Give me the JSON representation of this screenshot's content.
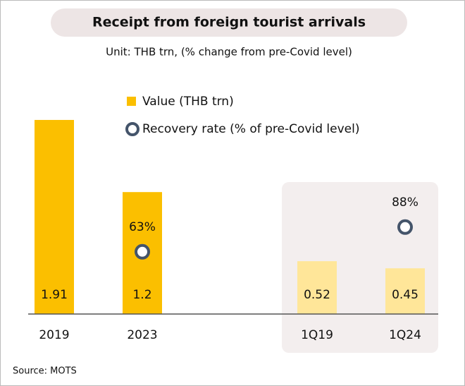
{
  "chart_data": {
    "type": "bar",
    "title": "Receipt from foreign tourist arrivals",
    "subtitle": "Unit: THB trn, (% change from pre-Covid level)",
    "categories": [
      "2019",
      "2023",
      "1Q19",
      "1Q24"
    ],
    "series": [
      {
        "name": "Value (THB trn)",
        "color": "#fbbf00",
        "values": [
          1.91,
          1.2,
          0.52,
          0.45
        ]
      },
      {
        "name": "Recovery rate (% of pre-Covid level)",
        "color": "#44546a",
        "values": [
          null,
          63,
          null,
          88
        ],
        "value_labels": [
          null,
          "63%",
          null,
          "88%"
        ]
      }
    ],
    "bar_colors": [
      "#fbbf00",
      "#fbbf00",
      "#ffe699",
      "#ffe699"
    ],
    "source": "Source: MOTS"
  }
}
